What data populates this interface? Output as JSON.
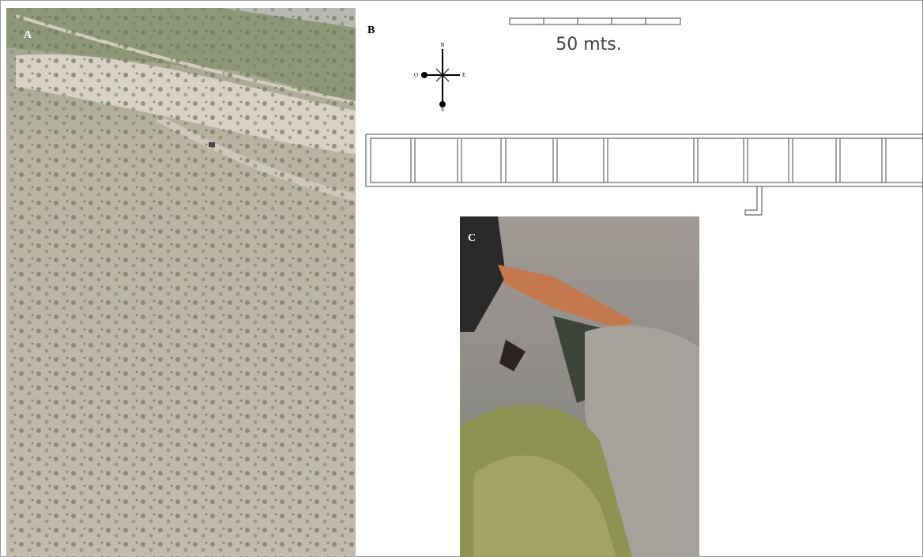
{
  "panels": {
    "a": {
      "label": "A"
    },
    "b": {
      "label": "B",
      "scale_label": "50 mts.",
      "compass": {
        "north": "N",
        "east": "E",
        "south": "S",
        "west": "O"
      }
    },
    "c": {
      "label": "C"
    }
  }
}
